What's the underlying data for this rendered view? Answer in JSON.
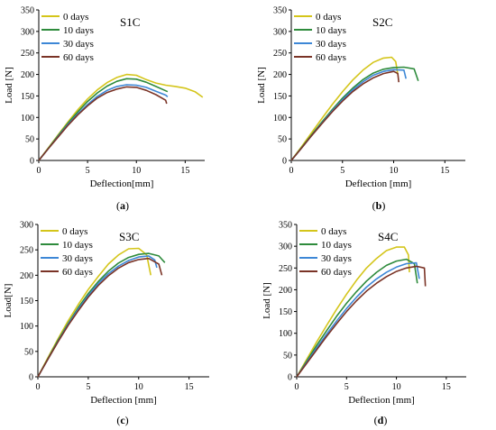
{
  "colors": {
    "0 days": "#d4c51a",
    "10 days": "#2e8b3c",
    "30 days": "#3d87d6",
    "60 days": "#7a3326"
  },
  "chart_data": [
    {
      "type": "line",
      "title": "S1C",
      "caption": "a",
      "xlabel": "Deflection[mm]",
      "ylabel": "Load [N]",
      "xlim": [
        0,
        17
      ],
      "ylim": [
        0,
        350
      ],
      "xticks": [
        0,
        5,
        10,
        15
      ],
      "yticks": [
        0,
        50,
        100,
        150,
        200,
        250,
        300,
        350
      ],
      "legend_position": "top-left",
      "grid": false,
      "series": [
        {
          "name": "0 days",
          "x": [
            0,
            1,
            2,
            3,
            4,
            5,
            6,
            7,
            8,
            9,
            10,
            11,
            12,
            13,
            14,
            15,
            16,
            16.8
          ],
          "y": [
            0,
            30,
            60,
            90,
            118,
            143,
            164,
            181,
            193,
            200,
            198,
            188,
            180,
            175,
            172,
            168,
            160,
            147
          ]
        },
        {
          "name": "10 days",
          "x": [
            0,
            1,
            2,
            3,
            4,
            5,
            6,
            7,
            8,
            9,
            10,
            11,
            12,
            13,
            13.2
          ],
          "y": [
            0,
            29,
            58,
            87,
            113,
            137,
            157,
            173,
            184,
            190,
            189,
            182,
            172,
            162,
            160
          ]
        },
        {
          "name": "30 days",
          "x": [
            0,
            1,
            2,
            3,
            4,
            5,
            6,
            7,
            8,
            9,
            10,
            11,
            12,
            13,
            13.2
          ],
          "y": [
            0,
            28,
            56,
            84,
            108,
            130,
            149,
            163,
            172,
            176,
            175,
            170,
            161,
            152,
            148
          ]
        },
        {
          "name": "60 days",
          "x": [
            0,
            1,
            2,
            3,
            4,
            5,
            6,
            7,
            8,
            9,
            10,
            11,
            12,
            13,
            13.1
          ],
          "y": [
            0,
            28,
            55,
            82,
            106,
            127,
            145,
            158,
            166,
            171,
            170,
            163,
            153,
            140,
            132
          ]
        }
      ]
    },
    {
      "type": "line",
      "title": "S2C",
      "caption": "b",
      "xlabel": "Deflection [mm]",
      "ylabel": "Load [N]",
      "xlim": [
        0,
        17
      ],
      "ylim": [
        0,
        350
      ],
      "xticks": [
        0,
        5,
        10,
        15
      ],
      "yticks": [
        0,
        50,
        100,
        150,
        200,
        250,
        300,
        350
      ],
      "legend_position": "top-left",
      "grid": false,
      "series": [
        {
          "name": "0 days",
          "x": [
            0,
            1,
            2,
            3,
            4,
            5,
            6,
            7,
            8,
            9,
            9.8,
            10.2,
            10.4
          ],
          "y": [
            0,
            32,
            65,
            98,
            130,
            160,
            187,
            210,
            228,
            238,
            240,
            230,
            200
          ]
        },
        {
          "name": "10 days",
          "x": [
            0,
            1,
            2,
            3,
            4,
            5,
            6,
            7,
            8,
            9,
            10,
            11,
            12,
            12.4
          ],
          "y": [
            0,
            30,
            60,
            90,
            118,
            145,
            168,
            188,
            203,
            212,
            216,
            217,
            213,
            185
          ]
        },
        {
          "name": "30 days",
          "x": [
            0,
            1,
            2,
            3,
            4,
            5,
            6,
            7,
            8,
            9,
            10,
            11,
            11.2
          ],
          "y": [
            0,
            29,
            58,
            87,
            115,
            141,
            164,
            183,
            198,
            207,
            211,
            210,
            190
          ]
        },
        {
          "name": "60 days",
          "x": [
            0,
            1,
            2,
            3,
            4,
            5,
            6,
            7,
            8,
            9,
            10,
            10.4,
            10.5
          ],
          "y": [
            0,
            29,
            58,
            86,
            113,
            138,
            160,
            178,
            192,
            202,
            207,
            202,
            182
          ]
        }
      ]
    },
    {
      "type": "line",
      "title": "S3C",
      "caption": "c",
      "xlabel": "Deflection [mm]",
      "ylabel": "Load[N]",
      "xlim": [
        0,
        17
      ],
      "ylim": [
        0,
        300
      ],
      "xticks": [
        0,
        5,
        10,
        15
      ],
      "yticks": [
        0,
        50,
        100,
        150,
        200,
        250,
        300
      ],
      "legend_position": "top-left",
      "grid": false,
      "series": [
        {
          "name": "0 days",
          "x": [
            0,
            1,
            2,
            3,
            4,
            5,
            6,
            7,
            8,
            9,
            10,
            10.8,
            11.2
          ],
          "y": [
            0,
            38,
            75,
            110,
            142,
            172,
            198,
            222,
            240,
            252,
            253,
            240,
            200
          ]
        },
        {
          "name": "10 days",
          "x": [
            0,
            1,
            2,
            3,
            4,
            5,
            6,
            7,
            8,
            9,
            10,
            11,
            12,
            12.6
          ],
          "y": [
            0,
            36,
            72,
            105,
            136,
            164,
            188,
            208,
            224,
            235,
            241,
            243,
            238,
            225
          ]
        },
        {
          "name": "30 days",
          "x": [
            0,
            1,
            2,
            3,
            4,
            5,
            6,
            7,
            8,
            9,
            10,
            11,
            11.6,
            11.8
          ],
          "y": [
            0,
            35,
            70,
            103,
            133,
            160,
            184,
            203,
            218,
            229,
            236,
            238,
            230,
            215
          ]
        },
        {
          "name": "60 days",
          "x": [
            0,
            1,
            2,
            3,
            4,
            5,
            6,
            7,
            8,
            9,
            10,
            11,
            12,
            12.3
          ],
          "y": [
            0,
            35,
            69,
            101,
            130,
            157,
            180,
            199,
            214,
            225,
            231,
            233,
            222,
            200
          ]
        }
      ]
    },
    {
      "type": "line",
      "title": "S4C",
      "caption": "d",
      "xlabel": "Deflection [mm]",
      "ylabel": "Load [N]",
      "xlim": [
        0,
        17
      ],
      "ylim": [
        0,
        350
      ],
      "xticks": [
        0,
        5,
        10,
        15
      ],
      "yticks": [
        0,
        50,
        100,
        150,
        200,
        250,
        300,
        350
      ],
      "legend_position": "top-left",
      "grid": false,
      "series": [
        {
          "name": "0 days",
          "x": [
            0,
            1,
            2,
            3,
            4,
            5,
            6,
            7,
            8,
            9,
            10,
            10.8,
            11.2,
            11.3
          ],
          "y": [
            0,
            40,
            80,
            118,
            155,
            190,
            222,
            250,
            272,
            290,
            298,
            298,
            280,
            240
          ]
        },
        {
          "name": "10 days",
          "x": [
            0,
            1,
            2,
            3,
            4,
            5,
            6,
            7,
            8,
            9,
            10,
            11,
            11.8,
            12.1
          ],
          "y": [
            0,
            36,
            72,
            106,
            139,
            169,
            196,
            220,
            240,
            256,
            266,
            270,
            260,
            215
          ]
        },
        {
          "name": "30 days",
          "x": [
            0,
            1,
            2,
            3,
            4,
            5,
            6,
            7,
            8,
            9,
            10,
            11,
            12,
            12.3
          ],
          "y": [
            0,
            33,
            66,
            98,
            128,
            157,
            183,
            206,
            225,
            240,
            252,
            260,
            262,
            225
          ]
        },
        {
          "name": "60 days",
          "x": [
            0,
            1,
            2,
            3,
            4,
            5,
            6,
            7,
            8,
            9,
            10,
            11,
            12,
            12.8,
            12.9
          ],
          "y": [
            0,
            31,
            62,
            93,
            122,
            150,
            175,
            197,
            215,
            230,
            242,
            250,
            254,
            250,
            208
          ]
        }
      ]
    }
  ]
}
